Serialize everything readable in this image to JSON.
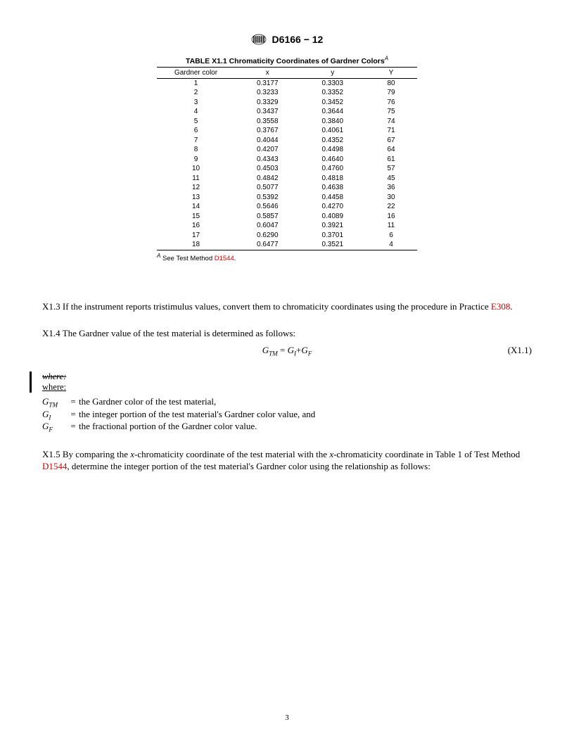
{
  "header": {
    "designation": "D6166 − 12"
  },
  "table": {
    "title": "TABLE X1.1 Chromaticity Coordinates of Gardner Colors",
    "title_sup": "A",
    "columns": [
      "Gardner color",
      "x",
      "y",
      "Y"
    ],
    "rows": [
      [
        "1",
        "0.3177",
        "0.3303",
        "80"
      ],
      [
        "2",
        "0.3233",
        "0.3352",
        "79"
      ],
      [
        "3",
        "0.3329",
        "0.3452",
        "76"
      ],
      [
        "4",
        "0.3437",
        "0.3644",
        "75"
      ],
      [
        "5",
        "0.3558",
        "0.3840",
        "74"
      ],
      [
        "6",
        "0.3767",
        "0.4061",
        "71"
      ],
      [
        "7",
        "0.4044",
        "0.4352",
        "67"
      ],
      [
        "8",
        "0.4207",
        "0.4498",
        "64"
      ],
      [
        "9",
        "0.4343",
        "0.4640",
        "61"
      ],
      [
        "10",
        "0.4503",
        "0.4760",
        "57"
      ],
      [
        "11",
        "0.4842",
        "0.4818",
        "45"
      ],
      [
        "12",
        "0.5077",
        "0.4638",
        "36"
      ],
      [
        "13",
        "0.5392",
        "0.4458",
        "30"
      ],
      [
        "14",
        "0.5646",
        "0.4270",
        "22"
      ],
      [
        "15",
        "0.5857",
        "0.4089",
        "16"
      ],
      [
        "16",
        "0.6047",
        "0.3921",
        "11"
      ],
      [
        "17",
        "0.6290",
        "0.3701",
        "6"
      ],
      [
        "18",
        "0.6477",
        "0.3521",
        "4"
      ]
    ],
    "footnote_sup": "A",
    "footnote_pre": " See Test Method ",
    "footnote_link": "D1544",
    "footnote_post": "."
  },
  "para_x13": {
    "num": "X1.3",
    "text_pre": "  If the instrument reports tristimulus values, convert them to chromaticity coordinates using the procedure in Practice ",
    "link": "E308",
    "text_post": "."
  },
  "para_x14": {
    "num": "X1.4",
    "text": "  The Gardner value of the test material is determined as follows:"
  },
  "equation": {
    "number": "(X1.1)"
  },
  "where_block": {
    "strike": "where:",
    "new": "where:",
    "rows": [
      {
        "sym_html": "G<sub>TM</sub>",
        "desc": "the Gardner color of the test material,"
      },
      {
        "sym_html": "G<sub>I</sub>",
        "desc": "the integer portion of the test material's Gardner color value, and"
      },
      {
        "sym_html": "G<sub>F</sub>",
        "desc": "the fractional portion of the Gardner color value."
      }
    ]
  },
  "para_x15": {
    "num": "X1.5",
    "text_pre": "  By comparing the ",
    "italic1": "x",
    "text_mid1": "-chromaticity coordinate of the test material with the ",
    "italic2": "x",
    "text_mid2": "-chromaticity coordinate in Table 1 of Test Method ",
    "link": "D1544",
    "text_post": ", determine the integer portion of the test material's Gardner color using the relationship as follows:"
  },
  "page_number": "3",
  "colors": {
    "link_red": "#cc0000",
    "text": "#000000",
    "bg": "#ffffff"
  }
}
